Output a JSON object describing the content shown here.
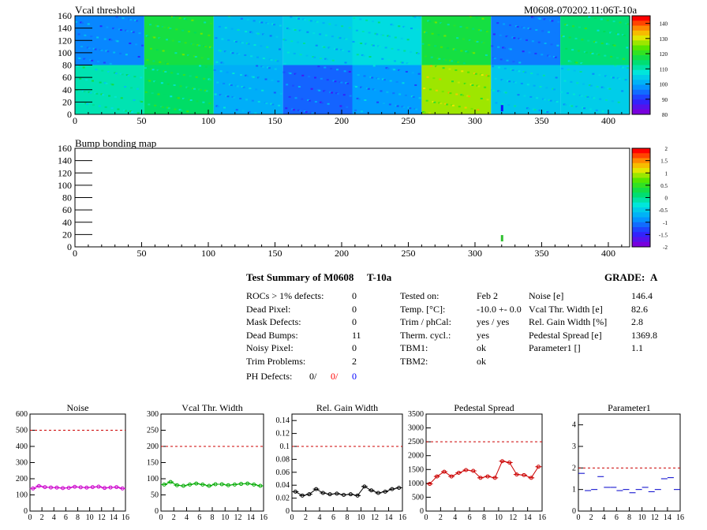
{
  "header": {
    "map1_title": "Vcal threshold",
    "module_id": "M0608-070202.11:06T-10a",
    "map2_title": "Bump bonding map"
  },
  "chart_data": [
    {
      "type": "heatmap",
      "title": "Vcal threshold",
      "xlim": [
        0,
        416
      ],
      "ylim": [
        0,
        160
      ],
      "x_ticks": [
        "0",
        "50",
        "100",
        "150",
        "200",
        "250",
        "300",
        "350",
        "400"
      ],
      "y_ticks": [
        "0",
        "20",
        "40",
        "60",
        "80",
        "100",
        "120",
        "140",
        "160"
      ],
      "colorbar": {
        "range": [
          80,
          145
        ],
        "ticks": [
          "140",
          "130",
          "120",
          "110",
          "100",
          "90",
          "80"
        ]
      },
      "roc_mean_values": {
        "top": [
          96,
          118,
          102,
          104,
          106,
          118,
          95,
          114
        ],
        "bottom": [
          110,
          115,
          100,
          93,
          98,
          128,
          103,
          104
        ]
      }
    },
    {
      "type": "heatmap",
      "title": "Bump bonding map",
      "xlim": [
        0,
        416
      ],
      "ylim": [
        0,
        160
      ],
      "x_ticks": [
        "0",
        "50",
        "100",
        "150",
        "200",
        "250",
        "300",
        "350",
        "400"
      ],
      "y_ticks": [
        "0",
        "20",
        "40",
        "60",
        "80",
        "100",
        "120",
        "140",
        "160"
      ],
      "colorbar": {
        "range": [
          -2,
          2
        ],
        "ticks": [
          "2",
          "1.5",
          "1",
          "0.5",
          "0",
          "-0.5",
          "-1",
          "-1.5",
          "-2"
        ]
      },
      "points": [
        {
          "x": 320,
          "y": 14
        }
      ]
    },
    {
      "type": "line",
      "title": "Noise",
      "x": [
        0,
        1,
        2,
        3,
        4,
        5,
        6,
        7,
        8,
        9,
        10,
        11,
        12,
        13,
        14,
        15
      ],
      "values": [
        140,
        155,
        148,
        146,
        145,
        142,
        144,
        150,
        147,
        145,
        148,
        151,
        143,
        146,
        148,
        140
      ],
      "ylim": [
        0,
        600
      ],
      "yticks": [
        "0",
        "100",
        "200",
        "300",
        "400",
        "500",
        "600"
      ],
      "xticks": [
        "0",
        "2",
        "4",
        "6",
        "8",
        "10",
        "12",
        "14",
        "16"
      ],
      "limit": 500,
      "color": "#cc00cc"
    },
    {
      "type": "line",
      "title": "Vcal Thr. Width",
      "x": [
        0,
        1,
        2,
        3,
        4,
        5,
        6,
        7,
        8,
        9,
        10,
        11,
        12,
        13,
        14,
        15
      ],
      "values": [
        82,
        90,
        80,
        78,
        82,
        85,
        82,
        78,
        83,
        83,
        80,
        82,
        84,
        85,
        82,
        78
      ],
      "ylim": [
        0,
        300
      ],
      "yticks": [
        "0",
        "50",
        "100",
        "150",
        "200",
        "250",
        "300"
      ],
      "xticks": [
        "0",
        "2",
        "4",
        "6",
        "8",
        "10",
        "12",
        "14",
        "16"
      ],
      "limit": 200,
      "color": "#00aa00"
    },
    {
      "type": "line",
      "title": "Rel. Gain Width",
      "x": [
        0,
        1,
        2,
        3,
        4,
        5,
        6,
        7,
        8,
        9,
        10,
        11,
        12,
        13,
        14,
        15
      ],
      "values": [
        0.03,
        0.024,
        0.026,
        0.034,
        0.028,
        0.026,
        0.027,
        0.025,
        0.026,
        0.024,
        0.038,
        0.032,
        0.028,
        0.03,
        0.034,
        0.036
      ],
      "ylim": [
        0,
        0.15
      ],
      "yticks": [
        "0",
        "0.02",
        "0.04",
        "0.06",
        "0.08",
        "0.1",
        "0.12",
        "0.14"
      ],
      "xticks": [
        "0",
        "2",
        "4",
        "6",
        "8",
        "10",
        "12",
        "14",
        "16"
      ],
      "limit": 0.1,
      "color": "#000000"
    },
    {
      "type": "line",
      "title": "Pedestal Spread",
      "x": [
        0,
        1,
        2,
        3,
        4,
        5,
        6,
        7,
        8,
        9,
        10,
        11,
        12,
        13,
        14,
        15
      ],
      "values": [
        980,
        1250,
        1420,
        1250,
        1380,
        1480,
        1450,
        1200,
        1250,
        1200,
        1800,
        1750,
        1320,
        1300,
        1200,
        1600
      ],
      "ylim": [
        0,
        3500
      ],
      "yticks": [
        "0",
        "500",
        "1000",
        "1500",
        "2000",
        "2500",
        "3000",
        "3500"
      ],
      "xticks": [
        "0",
        "2",
        "4",
        "6",
        "8",
        "10",
        "12",
        "14",
        "16"
      ],
      "limit": 2500,
      "color": "#cc0000"
    },
    {
      "type": "scatter",
      "title": "Parameter1",
      "x": [
        0,
        1,
        2,
        3,
        4,
        5,
        6,
        7,
        8,
        9,
        10,
        11,
        12,
        13,
        14,
        15
      ],
      "values": [
        1.75,
        0.95,
        1.0,
        1.6,
        1.1,
        1.1,
        0.95,
        1.0,
        0.85,
        1.0,
        1.1,
        0.9,
        1.0,
        1.5,
        1.55,
        1.0
      ],
      "ylim": [
        0,
        4.5
      ],
      "yticks": [
        "0",
        "1",
        "2",
        "3",
        "4"
      ],
      "xticks": [
        "0",
        "2",
        "4",
        "6",
        "8",
        "10",
        "12",
        "14",
        "16"
      ],
      "limit": 2,
      "color": "#0000cc"
    }
  ],
  "summary": {
    "title": "Test Summary of M0608",
    "temp_tag": "T-10a",
    "grade_label": "GRADE:",
    "grade": "A",
    "left": [
      {
        "label": "ROCs > 1% defects:",
        "value": "0"
      },
      {
        "label": "Dead Pixel:",
        "value": "0"
      },
      {
        "label": "Mask Defects:",
        "value": "0"
      },
      {
        "label": "Dead Bumps:",
        "value": "11"
      },
      {
        "label": "Noisy Pixel:",
        "value": "0"
      },
      {
        "label": "Trim Problems:",
        "value": "2"
      }
    ],
    "ph_label": "PH Defects:",
    "ph_values": [
      "0/",
      "0/",
      "0"
    ],
    "ph_colors": [
      "#000000",
      "#ff0000",
      "#0000ff"
    ],
    "middle": [
      {
        "label": "Tested on:",
        "value": "Feb 2"
      },
      {
        "label": "Temp. [°C]:",
        "value": "-10.0 +- 0.0"
      },
      {
        "label": "Trim / phCal:",
        "value": "yes / yes"
      },
      {
        "label": "Therm. cycl.:",
        "value": "yes"
      },
      {
        "label": "TBM1:",
        "value": "ok"
      },
      {
        "label": "TBM2:",
        "value": "ok"
      }
    ],
    "right": [
      {
        "label": "Noise [e]",
        "value": "146.4"
      },
      {
        "label": "Vcal Thr. Width [e]",
        "value": "82.6"
      },
      {
        "label": "Rel. Gain Width [%]",
        "value": "2.8"
      },
      {
        "label": "Pedestal Spread [e]",
        "value": "1369.8"
      },
      {
        "label": "Parameter1 []",
        "value": "1.1"
      }
    ]
  }
}
